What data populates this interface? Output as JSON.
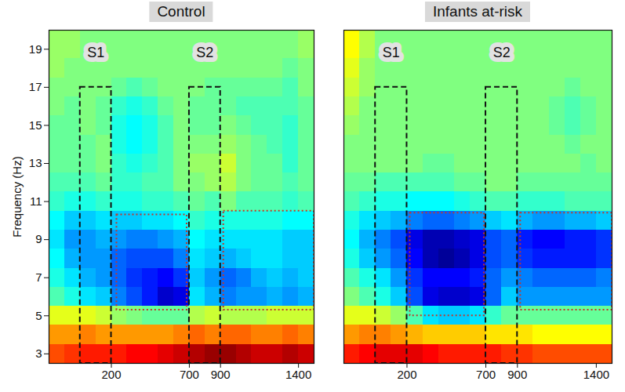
{
  "chart_data": [
    {
      "type": "heatmap",
      "title": "Control",
      "y_label": "Frequency (Hz)",
      "xlim": [
        -200,
        1500
      ],
      "ylim": [
        2.5,
        20
      ],
      "xticks": [
        200,
        700,
        900,
        1400
      ],
      "yticks": [
        3,
        5,
        7,
        9,
        11,
        13,
        15,
        17,
        19
      ],
      "color_range": [
        -1,
        1
      ],
      "x": [
        -150,
        -50,
        50,
        150,
        250,
        350,
        450,
        550,
        650,
        750,
        850,
        950,
        1050,
        1150,
        1250,
        1350,
        1450
      ],
      "y": [
        3,
        4,
        5,
        6,
        7,
        8,
        9,
        10,
        11,
        12,
        13,
        14,
        15,
        16,
        17,
        18,
        19
      ],
      "values": [
        [
          0.6,
          0.65,
          0.7,
          0.7,
          0.7,
          0.75,
          0.75,
          0.8,
          0.85,
          0.9,
          0.95,
          0.95,
          0.9,
          0.85,
          0.85,
          0.9,
          0.85
        ],
        [
          0.45,
          0.45,
          0.5,
          0.45,
          0.45,
          0.45,
          0.45,
          0.45,
          0.5,
          0.55,
          0.5,
          0.55,
          0.55,
          0.5,
          0.5,
          0.55,
          0.5
        ],
        [
          0.2,
          0.2,
          0.2,
          0.15,
          0.05,
          0,
          -0.05,
          -0.05,
          -0.05,
          0.1,
          0.15,
          0.1,
          0.1,
          0.1,
          0.15,
          0.15,
          0.15
        ],
        [
          -0.1,
          -0.2,
          -0.3,
          -0.35,
          -0.5,
          -0.6,
          -0.7,
          -0.85,
          -0.8,
          -0.3,
          -0.4,
          -0.5,
          -0.45,
          -0.45,
          -0.4,
          -0.45,
          -0.4
        ],
        [
          -0.2,
          -0.3,
          -0.4,
          -0.45,
          -0.55,
          -0.65,
          -0.7,
          -0.75,
          -0.65,
          -0.35,
          -0.45,
          -0.55,
          -0.5,
          -0.4,
          -0.35,
          -0.4,
          -0.35
        ],
        [
          -0.25,
          -0.4,
          -0.45,
          -0.45,
          -0.55,
          -0.6,
          -0.6,
          -0.6,
          -0.5,
          -0.3,
          -0.35,
          -0.4,
          -0.35,
          -0.3,
          -0.3,
          -0.35,
          -0.35
        ],
        [
          -0.3,
          -0.45,
          -0.45,
          -0.4,
          -0.45,
          -0.5,
          -0.5,
          -0.45,
          -0.4,
          -0.25,
          -0.3,
          -0.3,
          -0.3,
          -0.3,
          -0.3,
          -0.35,
          -0.35
        ],
        [
          -0.25,
          -0.35,
          -0.35,
          -0.3,
          -0.35,
          -0.35,
          -0.3,
          -0.3,
          -0.25,
          -0.15,
          -0.2,
          -0.2,
          -0.2,
          -0.2,
          -0.2,
          -0.25,
          -0.25
        ],
        [
          -0.15,
          -0.2,
          -0.2,
          -0.15,
          -0.2,
          -0.2,
          -0.15,
          -0.15,
          -0.1,
          -0.05,
          -0.1,
          0,
          -0.1,
          -0.1,
          -0.1,
          -0.15,
          -0.1
        ],
        [
          -0.1,
          -0.1,
          -0.1,
          -0.05,
          -0.15,
          -0.15,
          -0.1,
          -0.1,
          0,
          0,
          0.05,
          0.1,
          0,
          -0.05,
          -0.05,
          -0.1,
          -0.05
        ],
        [
          -0.05,
          -0.05,
          -0.05,
          0,
          -0.15,
          -0.2,
          -0.15,
          -0.1,
          0,
          0.05,
          0.05,
          0.15,
          0,
          -0.05,
          -0.05,
          -0.15,
          -0.05
        ],
        [
          -0.05,
          -0.05,
          -0.05,
          0,
          -0.2,
          -0.25,
          -0.2,
          -0.1,
          0,
          0,
          0,
          0.05,
          0,
          -0.05,
          -0.1,
          -0.15,
          -0.05
        ],
        [
          -0.05,
          -0.05,
          0,
          -0.05,
          -0.2,
          -0.25,
          -0.2,
          -0.1,
          0,
          -0.05,
          -0.05,
          0,
          -0.05,
          -0.1,
          -0.1,
          -0.15,
          -0.05
        ],
        [
          0,
          -0.05,
          0,
          -0.05,
          -0.15,
          -0.2,
          -0.15,
          -0.05,
          0,
          -0.05,
          -0.05,
          -0.05,
          -0.1,
          -0.1,
          -0.1,
          -0.1,
          -0.05
        ],
        [
          0,
          0,
          0,
          0,
          -0.05,
          -0.1,
          -0.05,
          0,
          0,
          0,
          -0.05,
          -0.05,
          -0.05,
          -0.05,
          -0.05,
          -0.1,
          0
        ],
        [
          0.05,
          0,
          0,
          0,
          0,
          0,
          0,
          0,
          0,
          0,
          0,
          0,
          0,
          0,
          0,
          -0.05,
          0
        ],
        [
          0.05,
          0.05,
          0,
          0,
          0,
          0,
          0,
          0,
          0,
          0,
          0,
          0,
          0,
          0,
          0,
          0,
          0.05
        ]
      ],
      "windows": [
        {
          "label": "S1",
          "x": [
            0,
            200
          ],
          "y": [
            2.5,
            17
          ]
        },
        {
          "label": "S2",
          "x": [
            700,
            900
          ],
          "y": [
            2.5,
            17
          ]
        }
      ],
      "regions": [
        {
          "x": [
            235,
            685
          ],
          "y": [
            5.3,
            10.3
          ]
        },
        {
          "x": [
            920,
            1500
          ],
          "y": [
            5.3,
            10.5
          ]
        }
      ]
    },
    {
      "type": "heatmap",
      "title": "Infants at-risk",
      "tick_labels": "x",
      "xlim": [
        -200,
        1500
      ],
      "ylim": [
        2.5,
        20
      ],
      "xticks": [
        200,
        700,
        900,
        1400
      ],
      "color_range": [
        -1,
        1
      ],
      "x": [
        -150,
        -50,
        50,
        150,
        250,
        350,
        450,
        550,
        650,
        750,
        850,
        950,
        1050,
        1150,
        1250,
        1350,
        1450
      ],
      "y": [
        3,
        4,
        5,
        6,
        7,
        8,
        9,
        10,
        11,
        12,
        13,
        14,
        15,
        16,
        17,
        18,
        19
      ],
      "values": [
        [
          0.7,
          0.75,
          0.8,
          0.8,
          0.8,
          0.75,
          0.7,
          0.7,
          0.7,
          0.7,
          0.65,
          0.65,
          0.6,
          0.6,
          0.6,
          0.6,
          0.6
        ],
        [
          0.45,
          0.5,
          0.5,
          0.45,
          0.4,
          0.35,
          0.35,
          0.35,
          0.35,
          0.3,
          0.3,
          0.3,
          0.25,
          0.25,
          0.25,
          0.25,
          0.25
        ],
        [
          0.2,
          0.2,
          0.15,
          0.05,
          -0.1,
          -0.3,
          -0.35,
          -0.35,
          -0.3,
          -0.15,
          -0.05,
          -0.05,
          -0.05,
          -0.05,
          -0.05,
          -0.05,
          -0.05
        ],
        [
          0,
          -0.1,
          -0.2,
          -0.35,
          -0.6,
          -0.8,
          -0.85,
          -0.85,
          -0.8,
          -0.55,
          -0.35,
          -0.45,
          -0.45,
          -0.45,
          -0.45,
          -0.45,
          -0.45
        ],
        [
          -0.1,
          -0.2,
          -0.3,
          -0.45,
          -0.65,
          -0.75,
          -0.75,
          -0.75,
          -0.7,
          -0.55,
          -0.45,
          -0.5,
          -0.55,
          -0.55,
          -0.55,
          -0.55,
          -0.5
        ],
        [
          -0.2,
          -0.35,
          -0.45,
          -0.55,
          -0.75,
          -0.9,
          -0.95,
          -0.9,
          -0.8,
          -0.6,
          -0.55,
          -0.65,
          -0.7,
          -0.7,
          -0.7,
          -0.7,
          -0.65
        ],
        [
          -0.25,
          -0.4,
          -0.5,
          -0.6,
          -0.8,
          -0.9,
          -0.9,
          -0.85,
          -0.8,
          -0.6,
          -0.55,
          -0.7,
          -0.75,
          -0.75,
          -0.7,
          -0.7,
          -0.65
        ],
        [
          -0.2,
          -0.3,
          -0.35,
          -0.4,
          -0.5,
          -0.55,
          -0.55,
          -0.5,
          -0.45,
          -0.35,
          -0.3,
          -0.4,
          -0.45,
          -0.45,
          -0.4,
          -0.4,
          -0.35
        ],
        [
          -0.1,
          -0.15,
          -0.2,
          -0.2,
          -0.25,
          -0.25,
          -0.25,
          -0.2,
          -0.15,
          -0.1,
          -0.1,
          -0.15,
          -0.15,
          -0.15,
          -0.1,
          -0.1,
          -0.1
        ],
        [
          -0.05,
          -0.05,
          -0.1,
          -0.1,
          -0.1,
          -0.1,
          -0.1,
          -0.05,
          -0.05,
          0,
          0,
          -0.05,
          -0.05,
          -0.05,
          -0.05,
          -0.05,
          -0.05
        ],
        [
          0,
          0,
          0,
          0,
          0,
          -0.05,
          -0.05,
          0,
          0,
          0,
          0,
          0,
          0,
          0,
          0,
          -0.05,
          0
        ],
        [
          0,
          0,
          0,
          0,
          0,
          0,
          0,
          0,
          0,
          0,
          0,
          0,
          0,
          0,
          -0.05,
          0,
          0
        ],
        [
          0.05,
          0,
          0,
          0,
          0,
          0,
          0,
          0,
          0,
          0,
          0,
          0,
          0,
          -0.05,
          -0.1,
          -0.05,
          0
        ],
        [
          0.1,
          0,
          0,
          0,
          0,
          0,
          0,
          0,
          0,
          0,
          0,
          0,
          0,
          -0.05,
          -0.1,
          -0.05,
          0
        ],
        [
          0.15,
          0.05,
          0,
          0,
          0,
          0,
          0,
          0,
          0,
          0,
          0,
          0,
          0,
          0,
          -0.05,
          0,
          0
        ],
        [
          0.2,
          0.05,
          0,
          0,
          0,
          0,
          0,
          0,
          0,
          0,
          0,
          0,
          0,
          0,
          0,
          0,
          0
        ],
        [
          0.25,
          0.1,
          0,
          0,
          0,
          0,
          0,
          0,
          0,
          0,
          0,
          0,
          0,
          0,
          0,
          0,
          0
        ]
      ],
      "windows": [
        {
          "label": "S1",
          "x": [
            0,
            200
          ],
          "y": [
            2.5,
            17
          ]
        },
        {
          "label": "S2",
          "x": [
            700,
            900
          ],
          "y": [
            2.5,
            17
          ]
        }
      ],
      "regions": [
        {
          "x": [
            220,
            690
          ],
          "y": [
            5,
            10.4
          ]
        },
        {
          "x": [
            920,
            1500
          ],
          "y": [
            5.3,
            10.4
          ]
        }
      ]
    }
  ]
}
